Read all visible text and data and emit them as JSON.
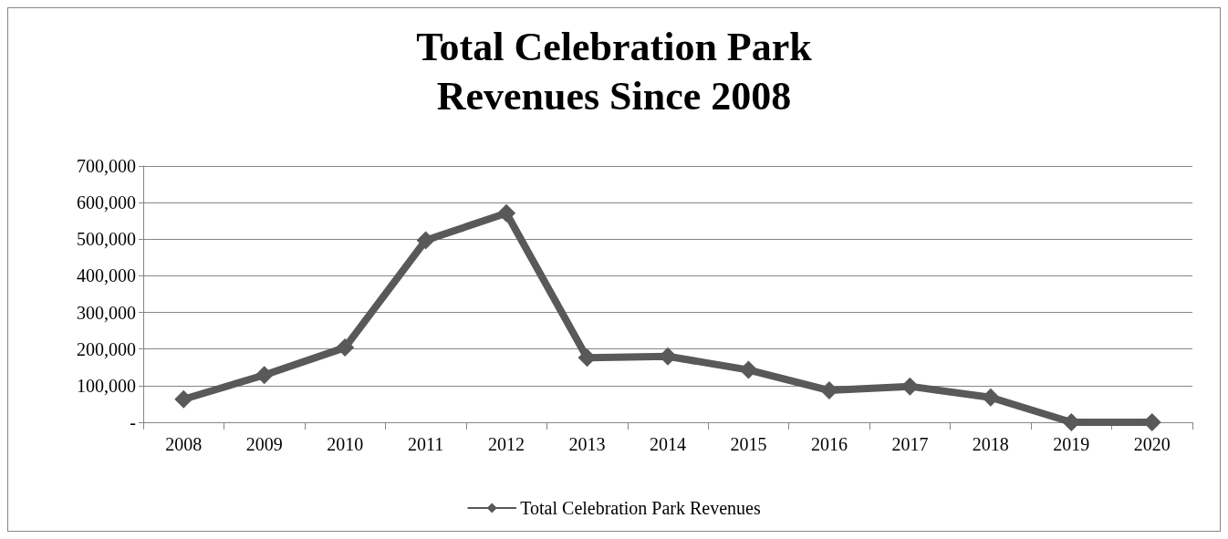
{
  "chart_data": {
    "type": "line",
    "title": "Total Celebration Park\nRevenues Since 2008",
    "categories": [
      "2008",
      "2009",
      "2010",
      "2011",
      "2012",
      "2013",
      "2014",
      "2015",
      "2016",
      "2017",
      "2018",
      "2019",
      "2020"
    ],
    "series": [
      {
        "name": "Total Celebration Park Revenues",
        "color": "#595959",
        "values": [
          63000,
          129000,
          204000,
          497000,
          571000,
          176000,
          180000,
          143000,
          87000,
          98000,
          68000,
          0,
          0
        ]
      }
    ],
    "ylim": [
      0,
      700000
    ],
    "yticks": [
      {
        "value": 0,
        "label": "-"
      },
      {
        "value": 100000,
        "label": "100,000"
      },
      {
        "value": 200000,
        "label": "200,000"
      },
      {
        "value": 300000,
        "label": "300,000"
      },
      {
        "value": 400000,
        "label": "400,000"
      },
      {
        "value": 500000,
        "label": "500,000"
      },
      {
        "value": 600000,
        "label": "600,000"
      },
      {
        "value": 700000,
        "label": "700,000"
      }
    ],
    "grid": "y",
    "legend": "bottom",
    "marker": "diamond",
    "line_style": "solid"
  }
}
